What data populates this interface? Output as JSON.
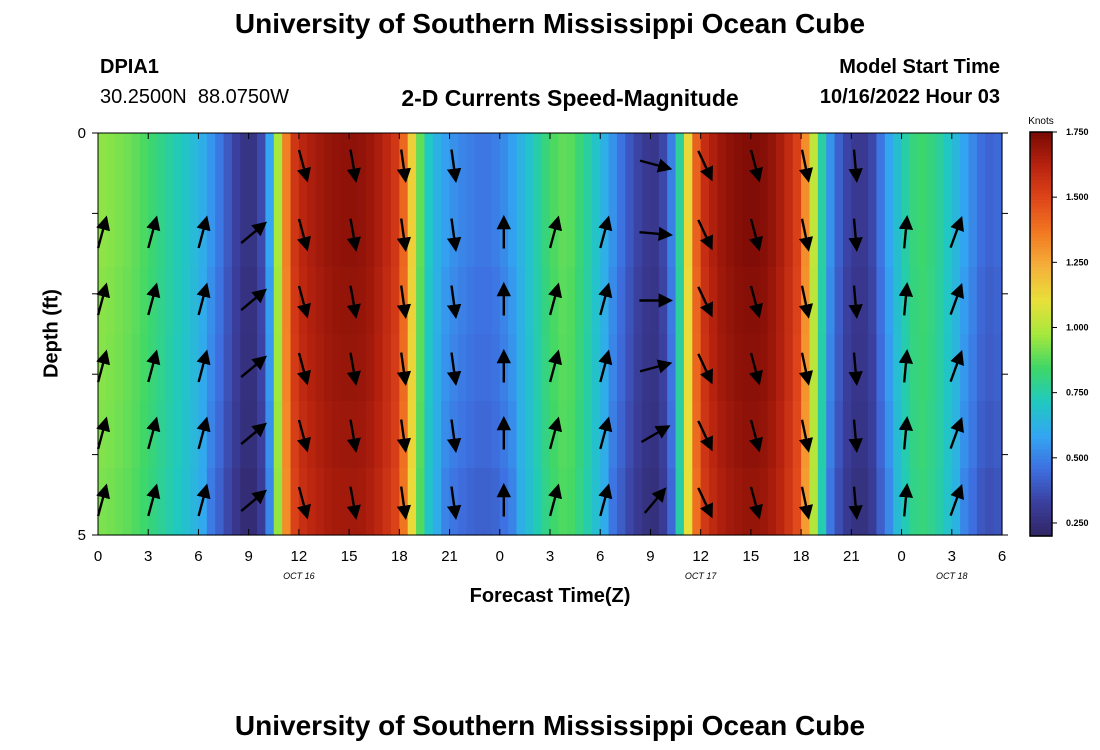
{
  "header": {
    "title": "University of Southern Mississippi Ocean Cube",
    "station_id": "DPIA1",
    "station_coords": "30.2500N  88.0750W",
    "chart_title": "2-D Currents Speed-Magnitude",
    "model_start_label": "Model Start Time",
    "model_start_value": "10/16/2022 Hour 03"
  },
  "footer": {
    "title": "University of Southern Mississippi Ocean Cube"
  },
  "chart_data": {
    "type": "heatmap",
    "title": "2-D Currents Speed-Magnitude",
    "xlabel": "Forecast Time(Z)",
    "ylabel": "Depth (ft)",
    "x_tick_labels": [
      "0",
      "3",
      "6",
      "9",
      "12",
      "15",
      "18",
      "21",
      "0",
      "3",
      "6",
      "9",
      "12",
      "15",
      "18",
      "21",
      "0",
      "3",
      "6"
    ],
    "x_range_hours": [
      0,
      54
    ],
    "y_tick_labels": [
      "0",
      "5"
    ],
    "ylim": [
      0,
      5
    ],
    "date_labels": [
      {
        "label": "OCT 16",
        "hour": 12
      },
      {
        "label": "OCT 17",
        "hour": 36
      },
      {
        "label": "OCT 18",
        "hour": 51
      }
    ],
    "colorbar": {
      "unit": "Knots",
      "min": 0.2,
      "max": 1.75,
      "ticks": [
        "1.750",
        "1.500",
        "1.250",
        "1.000",
        "0.750",
        "0.500",
        "0.250"
      ],
      "tick_values": [
        1.75,
        1.5,
        1.25,
        1.0,
        0.75,
        0.5,
        0.25
      ],
      "colors": [
        "#302563",
        "#3b3f9e",
        "#3e6fe0",
        "#33a6f2",
        "#20c9c0",
        "#3ed768",
        "#a6e83c",
        "#e8e03a",
        "#f5b13a",
        "#f27a22",
        "#e0471a",
        "#b8230f",
        "#7a0a05"
      ]
    },
    "depth_levels": 6,
    "time_step_hours": 0.5,
    "speed_knots_by_hour": [
      [
        0,
        0.95
      ],
      [
        1,
        0.93
      ],
      [
        2,
        0.9
      ],
      [
        3,
        0.85
      ],
      [
        4,
        0.78
      ],
      [
        5,
        0.72
      ],
      [
        6,
        0.64
      ],
      [
        7,
        0.52
      ],
      [
        8,
        0.36
      ],
      [
        8.5,
        0.3
      ],
      [
        9,
        0.25
      ],
      [
        9.5,
        0.3
      ],
      [
        10,
        0.42
      ],
      [
        10.5,
        0.75
      ],
      [
        11,
        1.2
      ],
      [
        11.5,
        1.5
      ],
      [
        12,
        1.6
      ],
      [
        13,
        1.66
      ],
      [
        14,
        1.7
      ],
      [
        15,
        1.71
      ],
      [
        16,
        1.7
      ],
      [
        17,
        1.63
      ],
      [
        18,
        1.52
      ],
      [
        18.5,
        1.3
      ],
      [
        19,
        1.0
      ],
      [
        19.5,
        0.78
      ],
      [
        20,
        0.65
      ],
      [
        21,
        0.55
      ],
      [
        22,
        0.5
      ],
      [
        23,
        0.47
      ],
      [
        24,
        0.5
      ],
      [
        25,
        0.6
      ],
      [
        26,
        0.72
      ],
      [
        27,
        0.85
      ],
      [
        28,
        0.9
      ],
      [
        29,
        0.8
      ],
      [
        30,
        0.66
      ],
      [
        31,
        0.5
      ],
      [
        32,
        0.36
      ],
      [
        33,
        0.28
      ],
      [
        33.5,
        0.3
      ],
      [
        34,
        0.4
      ],
      [
        34.5,
        0.6
      ],
      [
        35,
        0.95
      ],
      [
        35.5,
        1.3
      ],
      [
        36,
        1.55
      ],
      [
        37,
        1.67
      ],
      [
        38,
        1.72
      ],
      [
        39,
        1.74
      ],
      [
        40,
        1.72
      ],
      [
        41,
        1.63
      ],
      [
        42,
        1.48
      ],
      [
        42.5,
        1.15
      ],
      [
        43,
        0.9
      ],
      [
        43.5,
        0.62
      ],
      [
        44,
        0.46
      ],
      [
        45,
        0.3
      ],
      [
        46,
        0.3
      ],
      [
        46.5,
        0.4
      ],
      [
        47,
        0.55
      ],
      [
        48,
        0.72
      ],
      [
        49,
        0.85
      ],
      [
        50,
        0.8
      ],
      [
        51,
        0.68
      ],
      [
        52,
        0.55
      ],
      [
        53,
        0.42
      ],
      [
        54,
        0.45
      ]
    ],
    "depth_speed_factors": [
      1.0,
      1.0,
      0.97,
      0.95,
      0.92,
      0.88
    ],
    "vector_hours": [
      0,
      3,
      6,
      9,
      12,
      15,
      18,
      21,
      24,
      27,
      30,
      33,
      36,
      39,
      42,
      45,
      48,
      51
    ],
    "vector_directions_deg": [
      15,
      15,
      15,
      50,
      165,
      170,
      172,
      172,
      0,
      15,
      15,
      80,
      155,
      165,
      168,
      175,
      5,
      20
    ],
    "vector_directions_by_depth_at_hour_33_deg": [
      105,
      95,
      90,
      75,
      60,
      40
    ]
  }
}
